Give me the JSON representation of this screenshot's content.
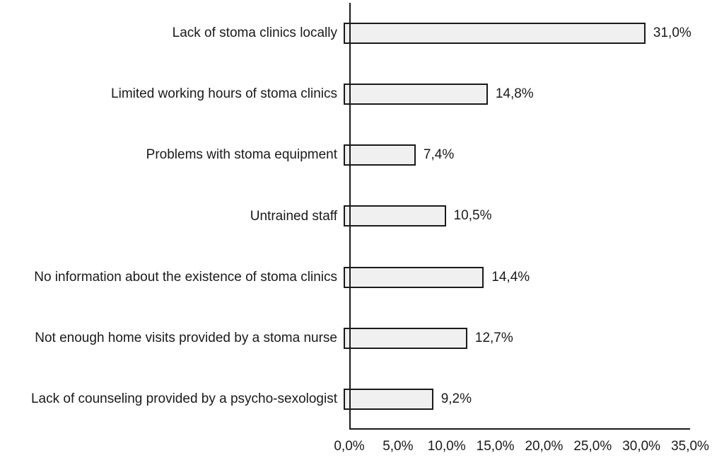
{
  "chart_data": {
    "type": "bar",
    "orientation": "horizontal",
    "title": "",
    "xlabel": "",
    "ylabel": "",
    "grid": false,
    "legend": false,
    "xlim": [
      0,
      35
    ],
    "categories": [
      "Lack of stoma clinics locally",
      "Limited working hours of stoma clinics",
      "Problems with stoma equipment",
      "Untrained staff",
      "No information about the existence of stoma clinics",
      "Not enough home visits provided by a stoma nurse",
      "Lack of counseling provided by a psycho-sexologist"
    ],
    "values": [
      31.0,
      14.8,
      7.4,
      10.5,
      14.4,
      12.7,
      9.2
    ],
    "value_labels": [
      "31,0%",
      "14,8%",
      "7,4%",
      "10,5%",
      "14,4%",
      "12,7%",
      "9,2%"
    ],
    "x_tick_values": [
      0,
      5,
      10,
      15,
      20,
      25,
      30,
      35
    ],
    "x_tick_labels": [
      "0,0%",
      "5,0%",
      "10,0%",
      "15,0%",
      "20,0%",
      "25,0%",
      "30,0%",
      "35,0%"
    ],
    "colors": {
      "bar_fill": "#f0f0f0",
      "bar_border": "#1a1a1a",
      "axis": "#1a1a1a",
      "text": "#1a1a1a",
      "background": "#ffffff"
    }
  }
}
